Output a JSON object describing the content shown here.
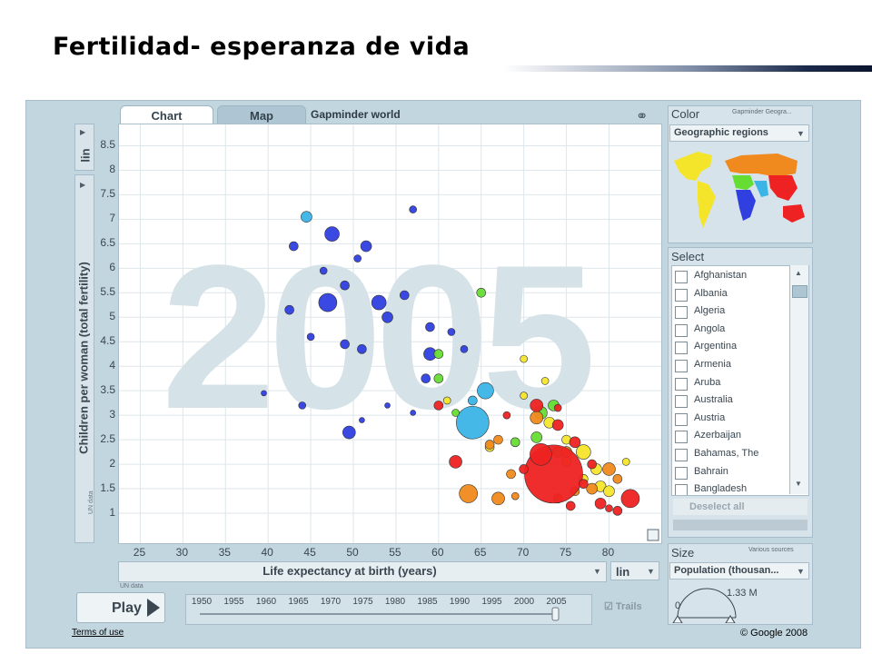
{
  "slide": {
    "title": "Fertilidad- esperanza de vida"
  },
  "tabs": [
    {
      "label": "Chart"
    },
    {
      "label": "Map"
    }
  ],
  "gapminder_title": "Gapminder world",
  "y_scale": "lin",
  "x_scale": "lin",
  "source_note": "UN data",
  "play_label": "Play",
  "timeline_years": [
    "1950",
    "1955",
    "1960",
    "1965",
    "1970",
    "1975",
    "1980",
    "1985",
    "1990",
    "1995",
    "2000",
    "2005"
  ],
  "trails_label": "Trails",
  "color_panel": {
    "title": "Color",
    "source": "Gapminder Geogra...",
    "dropdown": "Geographic regions"
  },
  "select_panel": {
    "title": "Select",
    "countries": [
      "Afghanistan",
      "Albania",
      "Algeria",
      "Angola",
      "Argentina",
      "Armenia",
      "Aruba",
      "Australia",
      "Austria",
      "Azerbaijan",
      "Bahamas, The",
      "Bahrain",
      "Bangladesh"
    ],
    "deselect_label": "Deselect all"
  },
  "size_panel": {
    "title": "Size",
    "source": "Various sources",
    "dropdown": "Population (thousan...",
    "max_label": "1.33 M",
    "min_label": "0"
  },
  "footer": {
    "terms": "Terms of use",
    "copyright": "© Google 2008"
  },
  "colors": {
    "sub_saharan_africa": "#2f3fe0",
    "south_asia": "#3bb4e6",
    "middle_east_north_africa": "#66dd33",
    "europe_central_asia": "#f5e52a",
    "americas": "#f08a1e",
    "east_asia_pacific": "#ee2222"
  },
  "chart_data": {
    "type": "scatter",
    "title": "",
    "xlabel": "Life expectancy at birth (years)",
    "ylabel": "Children per woman (total fertility)",
    "xlim": [
      22.5,
      84
    ],
    "ylim": [
      0.5,
      8.75
    ],
    "xticks": [
      25,
      30,
      35,
      40,
      45,
      50,
      55,
      60,
      65,
      70,
      75,
      80
    ],
    "yticks": [
      1,
      1.5,
      2,
      2.5,
      3,
      3.5,
      4,
      4.5,
      5,
      5.5,
      6,
      6.5,
      7,
      7.5,
      8,
      8.5
    ],
    "background_label": "2005",
    "points": [
      {
        "x": 47,
        "y": 5.3,
        "r": 10,
        "c": "#2f3fe0"
      },
      {
        "x": 47.5,
        "y": 6.7,
        "r": 8,
        "c": "#2f3fe0"
      },
      {
        "x": 43,
        "y": 6.45,
        "r": 5,
        "c": "#2f3fe0"
      },
      {
        "x": 44.5,
        "y": 7.05,
        "r": 6,
        "c": "#3bb4e6"
      },
      {
        "x": 53,
        "y": 5.3,
        "r": 8,
        "c": "#2f3fe0"
      },
      {
        "x": 57,
        "y": 7.2,
        "r": 4,
        "c": "#2f3fe0"
      },
      {
        "x": 42.5,
        "y": 5.15,
        "r": 5,
        "c": "#2f3fe0"
      },
      {
        "x": 49,
        "y": 5.65,
        "r": 5,
        "c": "#2f3fe0"
      },
      {
        "x": 51.5,
        "y": 6.45,
        "r": 6,
        "c": "#2f3fe0"
      },
      {
        "x": 50.5,
        "y": 6.2,
        "r": 4,
        "c": "#2f3fe0"
      },
      {
        "x": 46.5,
        "y": 5.95,
        "r": 4,
        "c": "#2f3fe0"
      },
      {
        "x": 54,
        "y": 5.0,
        "r": 6,
        "c": "#2f3fe0"
      },
      {
        "x": 56,
        "y": 5.45,
        "r": 5,
        "c": "#2f3fe0"
      },
      {
        "x": 59,
        "y": 4.8,
        "r": 5,
        "c": "#2f3fe0"
      },
      {
        "x": 49,
        "y": 4.45,
        "r": 5,
        "c": "#2f3fe0"
      },
      {
        "x": 51,
        "y": 4.35,
        "r": 5,
        "c": "#2f3fe0"
      },
      {
        "x": 45,
        "y": 4.6,
        "r": 4,
        "c": "#2f3fe0"
      },
      {
        "x": 59,
        "y": 4.25,
        "r": 7,
        "c": "#2f3fe0"
      },
      {
        "x": 49.5,
        "y": 2.65,
        "r": 7,
        "c": "#2f3fe0"
      },
      {
        "x": 44,
        "y": 3.2,
        "r": 4,
        "c": "#2f3fe0"
      },
      {
        "x": 39.5,
        "y": 3.45,
        "r": 3,
        "c": "#2f3fe0"
      },
      {
        "x": 61.5,
        "y": 4.7,
        "r": 4,
        "c": "#2f3fe0"
      },
      {
        "x": 63,
        "y": 4.35,
        "r": 4,
        "c": "#2f3fe0"
      },
      {
        "x": 58.5,
        "y": 3.75,
        "r": 5,
        "c": "#2f3fe0"
      },
      {
        "x": 57,
        "y": 3.05,
        "r": 3,
        "c": "#2f3fe0"
      },
      {
        "x": 54,
        "y": 3.2,
        "r": 3,
        "c": "#2f3fe0"
      },
      {
        "x": 51,
        "y": 2.9,
        "r": 3,
        "c": "#2f3fe0"
      },
      {
        "x": 64,
        "y": 2.85,
        "r": 18,
        "c": "#3bb4e6"
      },
      {
        "x": 65.5,
        "y": 3.5,
        "r": 9,
        "c": "#3bb4e6"
      },
      {
        "x": 64,
        "y": 3.3,
        "r": 5,
        "c": "#3bb4e6"
      },
      {
        "x": 65,
        "y": 5.5,
        "r": 5,
        "c": "#66dd33"
      },
      {
        "x": 60,
        "y": 4.25,
        "r": 5,
        "c": "#66dd33"
      },
      {
        "x": 60,
        "y": 3.75,
        "r": 5,
        "c": "#66dd33"
      },
      {
        "x": 62,
        "y": 3.05,
        "r": 4,
        "c": "#66dd33"
      },
      {
        "x": 72,
        "y": 3.05,
        "r": 7,
        "c": "#66dd33"
      },
      {
        "x": 73.5,
        "y": 3.2,
        "r": 6,
        "c": "#66dd33"
      },
      {
        "x": 71.5,
        "y": 2.55,
        "r": 6,
        "c": "#66dd33"
      },
      {
        "x": 74,
        "y": 2.25,
        "r": 6,
        "c": "#66dd33"
      },
      {
        "x": 69,
        "y": 2.45,
        "r": 5,
        "c": "#66dd33"
      },
      {
        "x": 70,
        "y": 3.4,
        "r": 4,
        "c": "#f5e52a"
      },
      {
        "x": 70,
        "y": 4.15,
        "r": 4,
        "c": "#f5e52a"
      },
      {
        "x": 72.5,
        "y": 3.7,
        "r": 4,
        "c": "#f5e52a"
      },
      {
        "x": 73,
        "y": 2.85,
        "r": 6,
        "c": "#f5e52a"
      },
      {
        "x": 75,
        "y": 2.5,
        "r": 5,
        "c": "#f5e52a"
      },
      {
        "x": 77,
        "y": 2.25,
        "r": 8,
        "c": "#f5e52a"
      },
      {
        "x": 78.5,
        "y": 1.9,
        "r": 6,
        "c": "#f5e52a"
      },
      {
        "x": 79,
        "y": 1.55,
        "r": 6,
        "c": "#f5e52a"
      },
      {
        "x": 80,
        "y": 1.45,
        "r": 6,
        "c": "#f5e52a"
      },
      {
        "x": 77,
        "y": 1.7,
        "r": 5,
        "c": "#f5e52a"
      },
      {
        "x": 75,
        "y": 2.05,
        "r": 5,
        "c": "#f5e52a"
      },
      {
        "x": 66,
        "y": 2.35,
        "r": 5,
        "c": "#f5e52a"
      },
      {
        "x": 61,
        "y": 3.3,
        "r": 4,
        "c": "#f5e52a"
      },
      {
        "x": 82,
        "y": 2.05,
        "r": 4,
        "c": "#f5e52a"
      },
      {
        "x": 63.5,
        "y": 1.4,
        "r": 10,
        "c": "#f08a1e"
      },
      {
        "x": 66,
        "y": 2.4,
        "r": 5,
        "c": "#f08a1e"
      },
      {
        "x": 67,
        "y": 2.5,
        "r": 5,
        "c": "#f08a1e"
      },
      {
        "x": 68.5,
        "y": 1.8,
        "r": 5,
        "c": "#f08a1e"
      },
      {
        "x": 71.5,
        "y": 2.95,
        "r": 7,
        "c": "#f08a1e"
      },
      {
        "x": 75,
        "y": 2.25,
        "r": 6,
        "c": "#f08a1e"
      },
      {
        "x": 78,
        "y": 1.5,
        "r": 6,
        "c": "#f08a1e"
      },
      {
        "x": 80,
        "y": 1.9,
        "r": 7,
        "c": "#f08a1e"
      },
      {
        "x": 67,
        "y": 1.3,
        "r": 7,
        "c": "#f08a1e"
      },
      {
        "x": 69,
        "y": 1.35,
        "r": 4,
        "c": "#f08a1e"
      },
      {
        "x": 74,
        "y": 1.3,
        "r": 5,
        "c": "#f08a1e"
      },
      {
        "x": 81,
        "y": 1.7,
        "r": 5,
        "c": "#f08a1e"
      },
      {
        "x": 76,
        "y": 1.45,
        "r": 5,
        "c": "#f08a1e"
      },
      {
        "x": 73.5,
        "y": 1.8,
        "r": 32,
        "c": "#ee2222"
      },
      {
        "x": 72,
        "y": 2.2,
        "r": 12,
        "c": "#ee2222"
      },
      {
        "x": 62,
        "y": 2.05,
        "r": 7,
        "c": "#ee2222"
      },
      {
        "x": 71.5,
        "y": 3.2,
        "r": 7,
        "c": "#ee2222"
      },
      {
        "x": 74,
        "y": 2.8,
        "r": 6,
        "c": "#ee2222"
      },
      {
        "x": 76,
        "y": 2.45,
        "r": 6,
        "c": "#ee2222"
      },
      {
        "x": 82.5,
        "y": 1.3,
        "r": 10,
        "c": "#ee2222"
      },
      {
        "x": 79,
        "y": 1.2,
        "r": 6,
        "c": "#ee2222"
      },
      {
        "x": 81,
        "y": 1.05,
        "r": 5,
        "c": "#ee2222"
      },
      {
        "x": 77,
        "y": 1.6,
        "r": 5,
        "c": "#ee2222"
      },
      {
        "x": 60,
        "y": 3.2,
        "r": 5,
        "c": "#ee2222"
      },
      {
        "x": 68,
        "y": 3.0,
        "r": 4,
        "c": "#ee2222"
      },
      {
        "x": 70,
        "y": 1.9,
        "r": 5,
        "c": "#ee2222"
      },
      {
        "x": 74,
        "y": 3.15,
        "r": 4,
        "c": "#ee2222"
      },
      {
        "x": 78,
        "y": 2.0,
        "r": 5,
        "c": "#ee2222"
      },
      {
        "x": 80,
        "y": 1.1,
        "r": 4,
        "c": "#ee2222"
      },
      {
        "x": 75.5,
        "y": 1.15,
        "r": 5,
        "c": "#ee2222"
      }
    ]
  }
}
